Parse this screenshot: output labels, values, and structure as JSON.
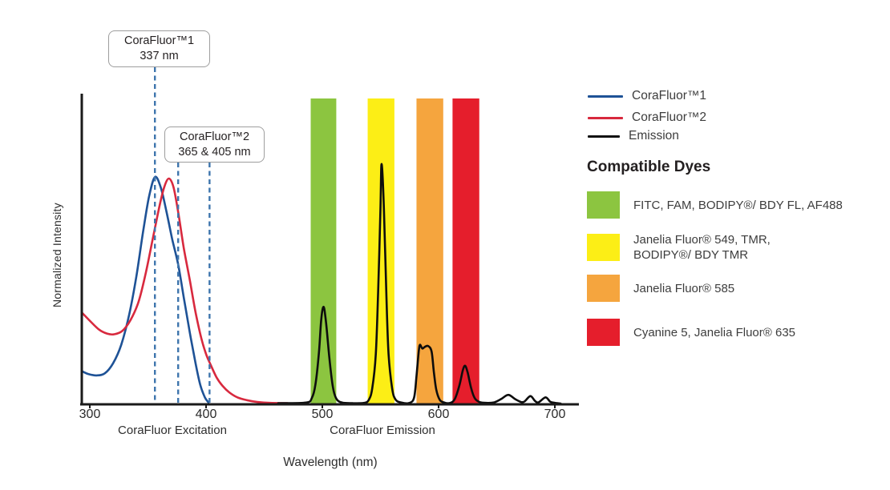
{
  "chart_data": {
    "type": "line",
    "title": "",
    "xlabel": "Wavelength (nm)",
    "ylabel": "Normalized Intensity",
    "grid": false,
    "legend_position": "right",
    "x_axis": {
      "min": 300,
      "max": 700,
      "ticks": [
        300,
        400,
        500,
        600,
        700
      ]
    },
    "ylim": [
      0,
      1
    ],
    "section_labels": {
      "excitation": "CoraFluor Excitation",
      "emission": "CoraFluor Emission"
    },
    "bands": [
      {
        "name": "green-filter",
        "color": "#8CC540",
        "from_nm": 490,
        "to_nm": 512
      },
      {
        "name": "yellow-filter",
        "color": "#FCEE16",
        "from_nm": 539,
        "to_nm": 562
      },
      {
        "name": "orange-filter",
        "color": "#F5A53E",
        "from_nm": 581,
        "to_nm": 604
      },
      {
        "name": "red-filter",
        "color": "#E51E2C",
        "from_nm": 612,
        "to_nm": 635
      }
    ],
    "markers": [
      {
        "labels": [
          "CoraFluor™1",
          "337 nm"
        ],
        "lines_nm": [
          356
        ]
      },
      {
        "labels": [
          "CoraFluor™2",
          "365 & 405 nm"
        ],
        "lines_nm": [
          376,
          403
        ]
      }
    ],
    "marker_line_color": "#3E75AD",
    "series": [
      {
        "name": "CoraFluor™1",
        "color": "#1E5296",
        "points": [
          [
            293,
            0.105
          ],
          [
            299,
            0.095
          ],
          [
            306,
            0.091
          ],
          [
            313,
            0.098
          ],
          [
            320,
            0.13
          ],
          [
            327,
            0.19
          ],
          [
            334,
            0.29
          ],
          [
            340,
            0.41
          ],
          [
            346,
            0.56
          ],
          [
            351,
            0.67
          ],
          [
            356,
            0.733
          ],
          [
            361,
            0.7
          ],
          [
            366,
            0.62
          ],
          [
            371,
            0.53
          ],
          [
            376,
            0.45
          ],
          [
            381,
            0.34
          ],
          [
            386,
            0.23
          ],
          [
            391,
            0.13
          ],
          [
            395,
            0.06
          ],
          [
            399,
            0.02
          ],
          [
            402,
            0.004
          ]
        ]
      },
      {
        "name": "CoraFluor™2",
        "color": "#D8293E",
        "points": [
          [
            293,
            0.295
          ],
          [
            300,
            0.268
          ],
          [
            308,
            0.239
          ],
          [
            315,
            0.226
          ],
          [
            321,
            0.224
          ],
          [
            328,
            0.235
          ],
          [
            335,
            0.27
          ],
          [
            342,
            0.33
          ],
          [
            348,
            0.42
          ],
          [
            354,
            0.53
          ],
          [
            360,
            0.64
          ],
          [
            364,
            0.7
          ],
          [
            368,
            0.728
          ],
          [
            372,
            0.7
          ],
          [
            376,
            0.62
          ],
          [
            381,
            0.5
          ],
          [
            386,
            0.4
          ],
          [
            391,
            0.295
          ],
          [
            396,
            0.21
          ],
          [
            400,
            0.16
          ],
          [
            404,
            0.125
          ],
          [
            409,
            0.085
          ],
          [
            414,
            0.058
          ],
          [
            420,
            0.036
          ],
          [
            427,
            0.02
          ],
          [
            435,
            0.011
          ],
          [
            444,
            0.005
          ],
          [
            455,
            0.002
          ],
          [
            470,
            0.001
          ]
        ]
      },
      {
        "name": "Emission",
        "color": "#0D0D0D",
        "points": [
          [
            462,
            0.001
          ],
          [
            486,
            0.003
          ],
          [
            491,
            0.018
          ],
          [
            494,
            0.06
          ],
          [
            497,
            0.16
          ],
          [
            499,
            0.27
          ],
          [
            501,
            0.313
          ],
          [
            503,
            0.27
          ],
          [
            506,
            0.15
          ],
          [
            509,
            0.055
          ],
          [
            512,
            0.016
          ],
          [
            517,
            0.003
          ],
          [
            526,
            0.001
          ],
          [
            536,
            0.002
          ],
          [
            540,
            0.012
          ],
          [
            543,
            0.05
          ],
          [
            546,
            0.16
          ],
          [
            548,
            0.36
          ],
          [
            550,
            0.63
          ],
          [
            551,
            0.775
          ],
          [
            553,
            0.63
          ],
          [
            555,
            0.36
          ],
          [
            557,
            0.16
          ],
          [
            560,
            0.05
          ],
          [
            563,
            0.013
          ],
          [
            568,
            0.003
          ],
          [
            575,
            0.002
          ],
          [
            579,
            0.02
          ],
          [
            581,
            0.09
          ],
          [
            583,
            0.17
          ],
          [
            584,
            0.19
          ],
          [
            586,
            0.178
          ],
          [
            588,
            0.183
          ],
          [
            591,
            0.186
          ],
          [
            594,
            0.168
          ],
          [
            596,
            0.1
          ],
          [
            598,
            0.045
          ],
          [
            601,
            0.012
          ],
          [
            605,
            0.003
          ],
          [
            610,
            0.002
          ],
          [
            614,
            0.015
          ],
          [
            618,
            0.06
          ],
          [
            621,
            0.11
          ],
          [
            623,
            0.122
          ],
          [
            625,
            0.1
          ],
          [
            628,
            0.05
          ],
          [
            631,
            0.018
          ],
          [
            635,
            0.005
          ],
          [
            641,
            0.002
          ],
          [
            648,
            0.004
          ],
          [
            654,
            0.015
          ],
          [
            660,
            0.028
          ],
          [
            666,
            0.014
          ],
          [
            671,
            0.005
          ],
          [
            674,
            0.007
          ],
          [
            679,
            0.024
          ],
          [
            683,
            0.008
          ],
          [
            686,
            0.004
          ],
          [
            692,
            0.02
          ],
          [
            696,
            0.006
          ],
          [
            700,
            0.002
          ],
          [
            705,
            0.0
          ]
        ]
      }
    ]
  },
  "legend": {
    "items": [
      {
        "label": "CoraFluor™1",
        "color": "#1E5296"
      },
      {
        "label": "CoraFluor™2",
        "color": "#D8293E"
      },
      {
        "label": "Emission",
        "color": "#111111"
      }
    ]
  },
  "dyes_panel": {
    "heading": "Compatible Dyes",
    "items": [
      {
        "swatch_color": "#8CC540",
        "lines": [
          "FITC, FAM, BODIPY®/ BDY FL, AF488"
        ]
      },
      {
        "swatch_color": "#FCEE16",
        "lines": [
          "Janelia Fluor® 549, TMR,",
          "BODIPY®/ BDY TMR"
        ]
      },
      {
        "swatch_color": "#F5A53E",
        "lines": [
          "Janelia Fluor® 585"
        ]
      },
      {
        "swatch_color": "#E51E2C",
        "lines": [
          "Cyanine 5, Janelia Fluor® 635"
        ]
      }
    ]
  }
}
